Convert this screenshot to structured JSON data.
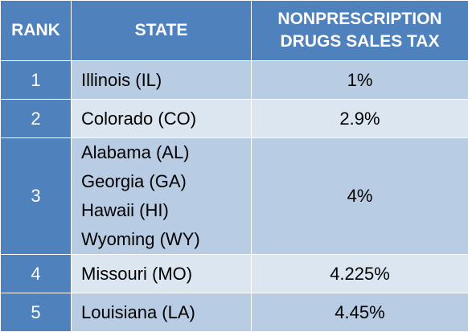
{
  "header": {
    "rank": "RANK",
    "state": "STATE",
    "tax_line1": "NONPRESCRIPTION",
    "tax_line2": "DRUGS SALES TAX"
  },
  "rows": [
    {
      "rank": "1",
      "states": [
        "Illinois (IL)"
      ],
      "tax": "1%"
    },
    {
      "rank": "2",
      "states": [
        "Colorado (CO)"
      ],
      "tax": "2.9%"
    },
    {
      "rank": "3",
      "states": [
        "Alabama (AL)",
        "Georgia (GA)",
        "Hawaii (HI)",
        "Wyoming (WY)"
      ],
      "tax": "4%"
    },
    {
      "rank": "4",
      "states": [
        "Missouri (MO)"
      ],
      "tax": "4.225%"
    },
    {
      "rank": "5",
      "states": [
        "Louisiana (LA)"
      ],
      "tax": "4.45%"
    }
  ],
  "colors": {
    "header_bg": "#4f81bd",
    "row_odd_bg": "#b8cce4",
    "row_even_bg": "#dce6f1"
  }
}
